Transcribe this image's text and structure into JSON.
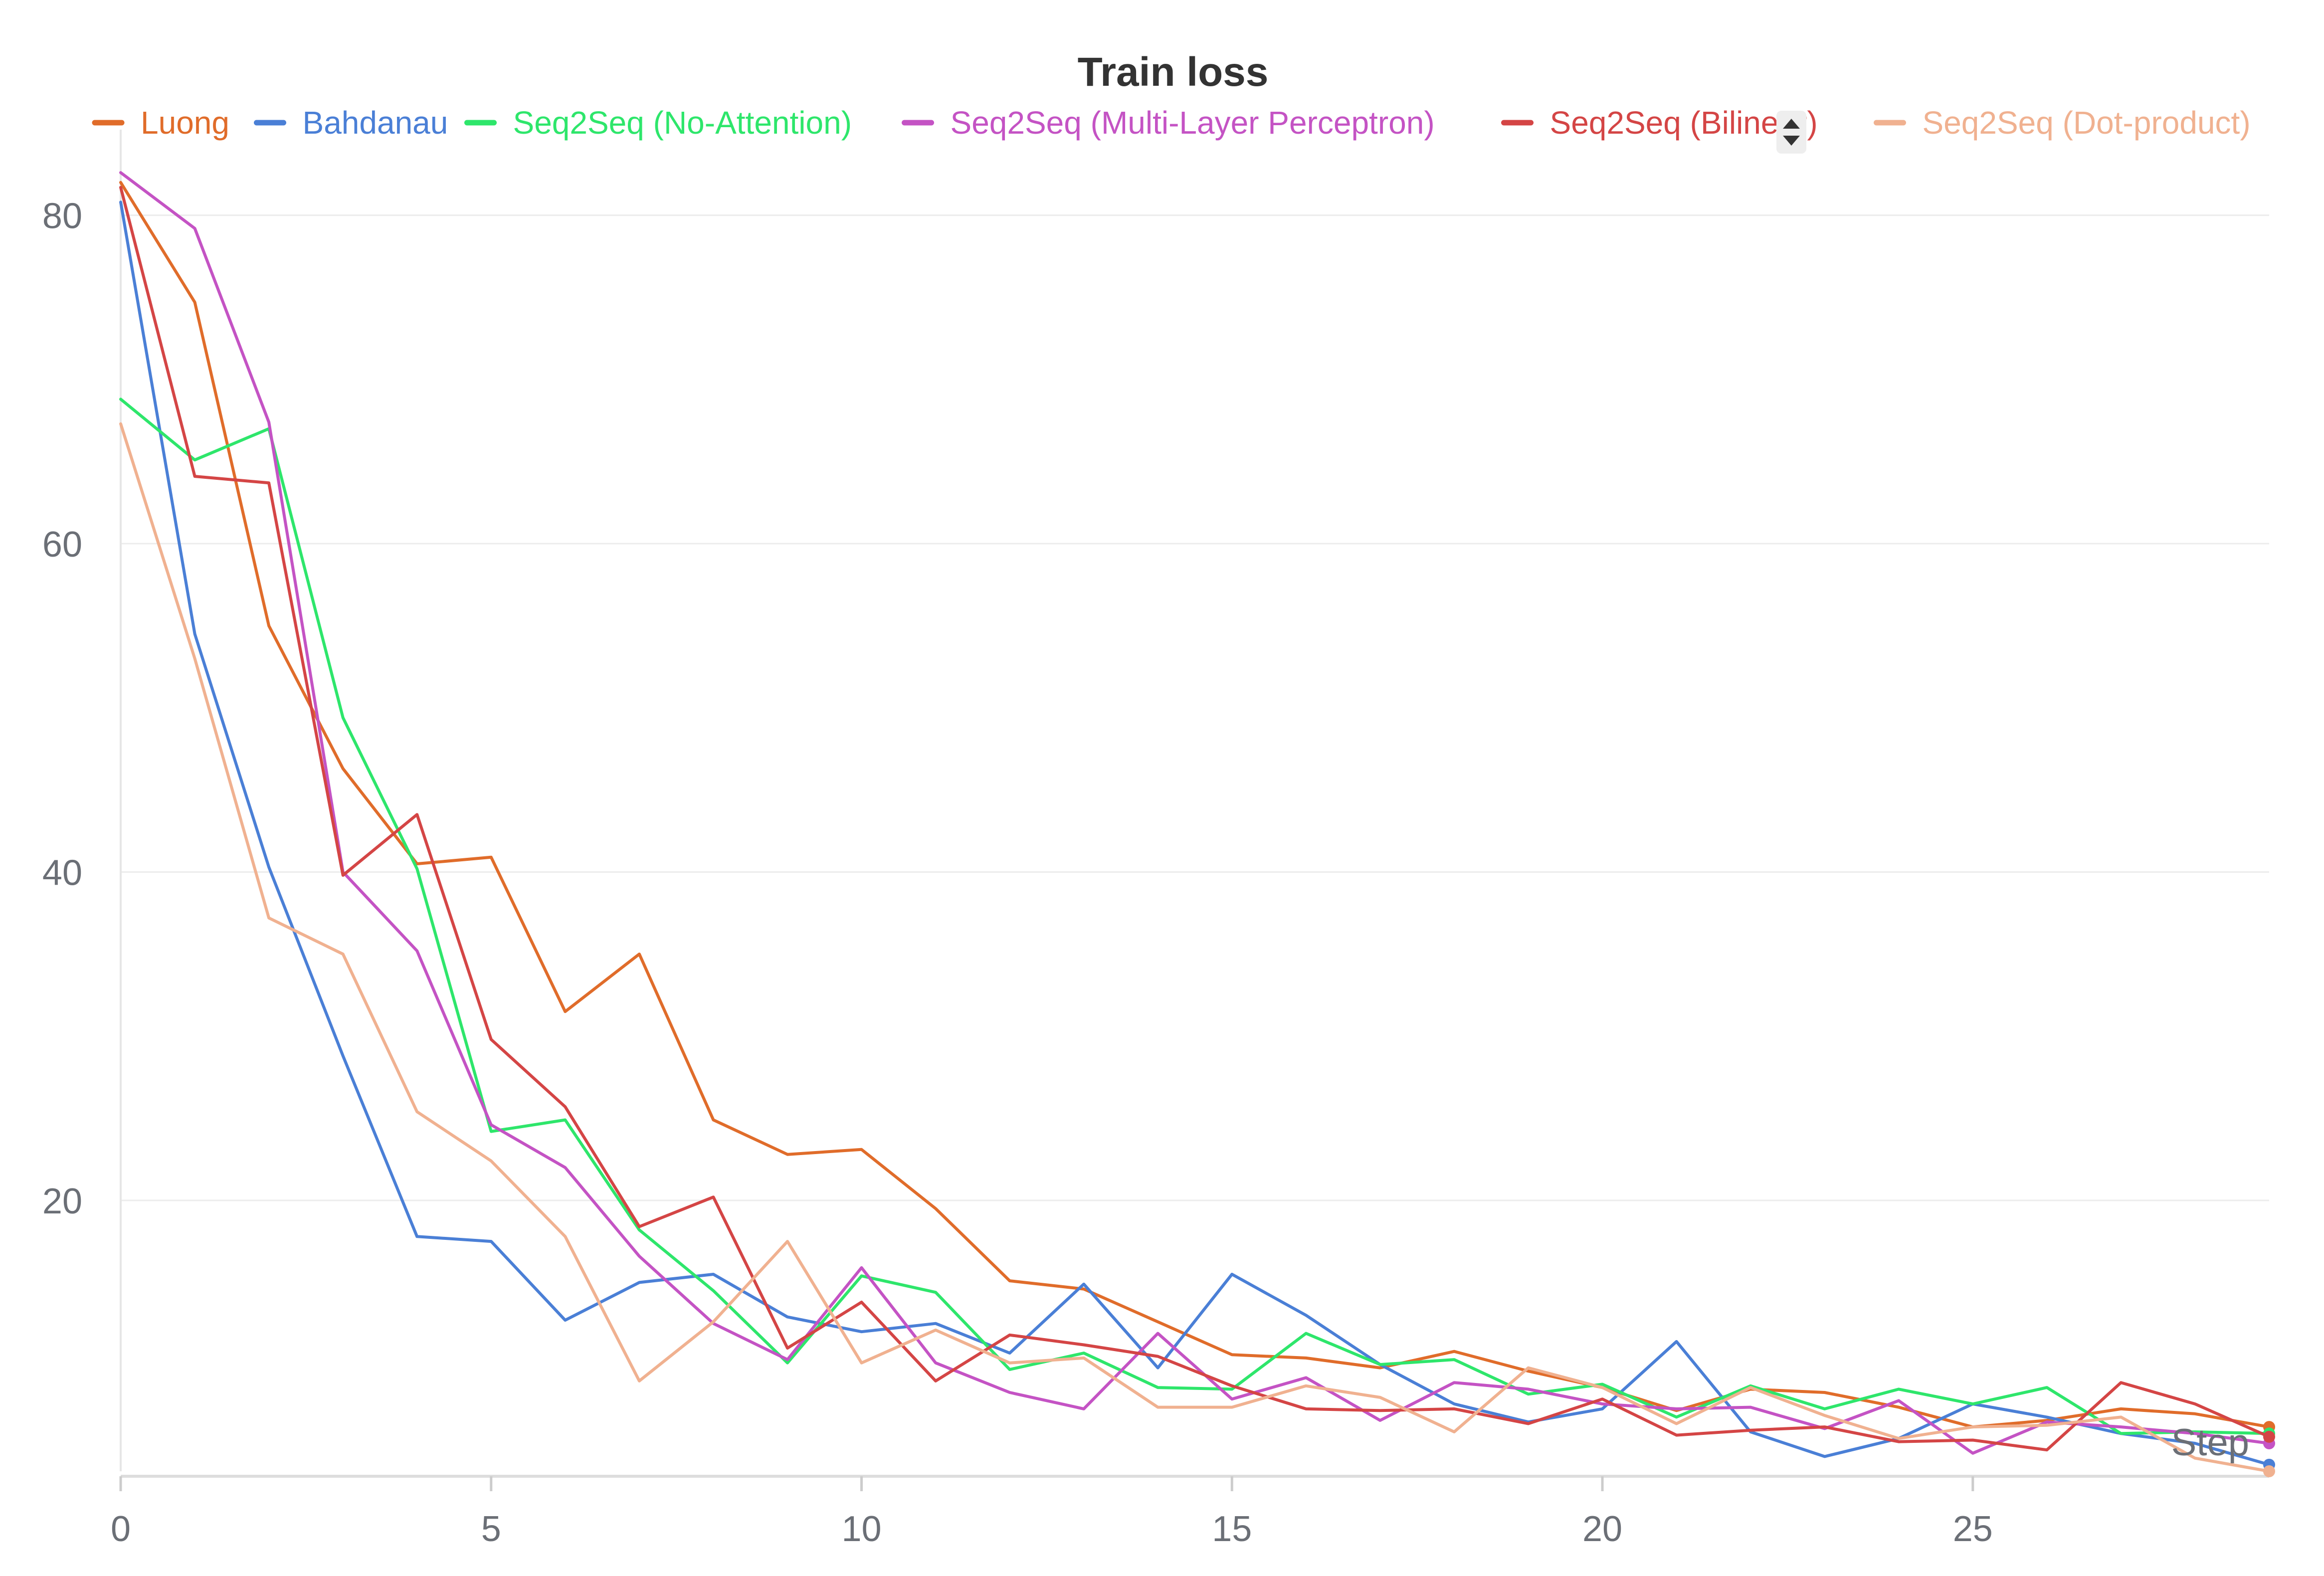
{
  "chart_data": {
    "type": "line",
    "title": "Train loss",
    "xlabel": "Step",
    "ylabel": "",
    "xlim": [
      0,
      29
    ],
    "ylim": [
      3.5,
      84
    ],
    "x_ticks": [
      0,
      5,
      10,
      15,
      20,
      25
    ],
    "y_ticks": [
      20,
      40,
      60,
      80
    ],
    "grid": "horizontal",
    "legend_position": "top",
    "x": [
      0,
      1,
      2,
      3,
      4,
      5,
      6,
      7,
      8,
      9,
      10,
      11,
      12,
      13,
      14,
      15,
      16,
      17,
      18,
      19,
      20,
      21,
      22,
      23,
      24,
      25,
      26,
      27,
      28,
      29
    ],
    "series": [
      {
        "name": "Luong",
        "color": "#e06c2a",
        "values": [
          82,
          74.7,
          55,
          46.3,
          40.5,
          40.9,
          31.5,
          35,
          24.9,
          22.8,
          23.1,
          19.5,
          15.1,
          14.6,
          12.6,
          10.6,
          10.4,
          9.8,
          10.8,
          9.6,
          8.6,
          7.2,
          8.5,
          8.3,
          7.4,
          6.2,
          6.6,
          7.3,
          7,
          6.2
        ]
      },
      {
        "name": "Bahdanau",
        "color": "#4a7fd6",
        "values": [
          80.8,
          54.5,
          40.3,
          28.8,
          17.8,
          17.5,
          12.7,
          15,
          15.5,
          12.9,
          12,
          12.5,
          10.7,
          14.9,
          9.8,
          15.5,
          13,
          10,
          7.6,
          6.5,
          7.3,
          11.4,
          5.9,
          4.4,
          5.5,
          7.6,
          6.8,
          5.8,
          5.2,
          3.9
        ]
      },
      {
        "name": "Seq2Seq (No-Attention)",
        "color": "#2ee66b",
        "values": [
          68.8,
          65.1,
          67,
          49.4,
          40.2,
          24.2,
          24.9,
          18.2,
          14.5,
          10.1,
          15.4,
          14.4,
          9.7,
          10.7,
          8.6,
          8.5,
          11.9,
          10,
          10.3,
          8.2,
          8.8,
          6.8,
          8.7,
          7.3,
          8.5,
          7.6,
          8.6,
          5.8,
          5.9,
          5.8
        ]
      },
      {
        "name": "Seq2Seq (Multi-Layer Perceptron)",
        "color": "#c453c4",
        "values": [
          82.6,
          79.2,
          67.4,
          40,
          35.2,
          24.6,
          22,
          16.6,
          12.5,
          10.3,
          15.9,
          10.1,
          8.3,
          7.3,
          11.9,
          7.9,
          9.2,
          6.6,
          8.9,
          8.5,
          7.6,
          7.3,
          7.4,
          6.1,
          7.8,
          4.6,
          6.5,
          6.2,
          5.8,
          5.2
        ]
      },
      {
        "name": "Seq2Seq (Bilinear)",
        "color": "#d44545",
        "values": [
          81.7,
          64.1,
          63.7,
          39.8,
          43.5,
          29.8,
          25.7,
          18.4,
          20.2,
          11,
          13.8,
          9,
          11.8,
          11.2,
          10.5,
          8.7,
          7.3,
          7.2,
          7.3,
          6.4,
          7.9,
          5.7,
          6,
          6.2,
          5.3,
          5.4,
          4.8,
          8.9,
          7.6,
          5.6
        ]
      },
      {
        "name": "Seq2Seq (Dot-product)",
        "color": "#f0b190",
        "values": [
          67.3,
          53,
          37.2,
          35,
          25.4,
          22.4,
          17.8,
          9,
          12.6,
          17.5,
          10.1,
          12.1,
          10.1,
          10.4,
          7.4,
          7.4,
          8.7,
          8,
          5.9,
          9.8,
          8.6,
          6.4,
          8.6,
          6.9,
          5.5,
          6.2,
          6.3,
          6.8,
          4.3,
          3.5
        ]
      }
    ]
  }
}
